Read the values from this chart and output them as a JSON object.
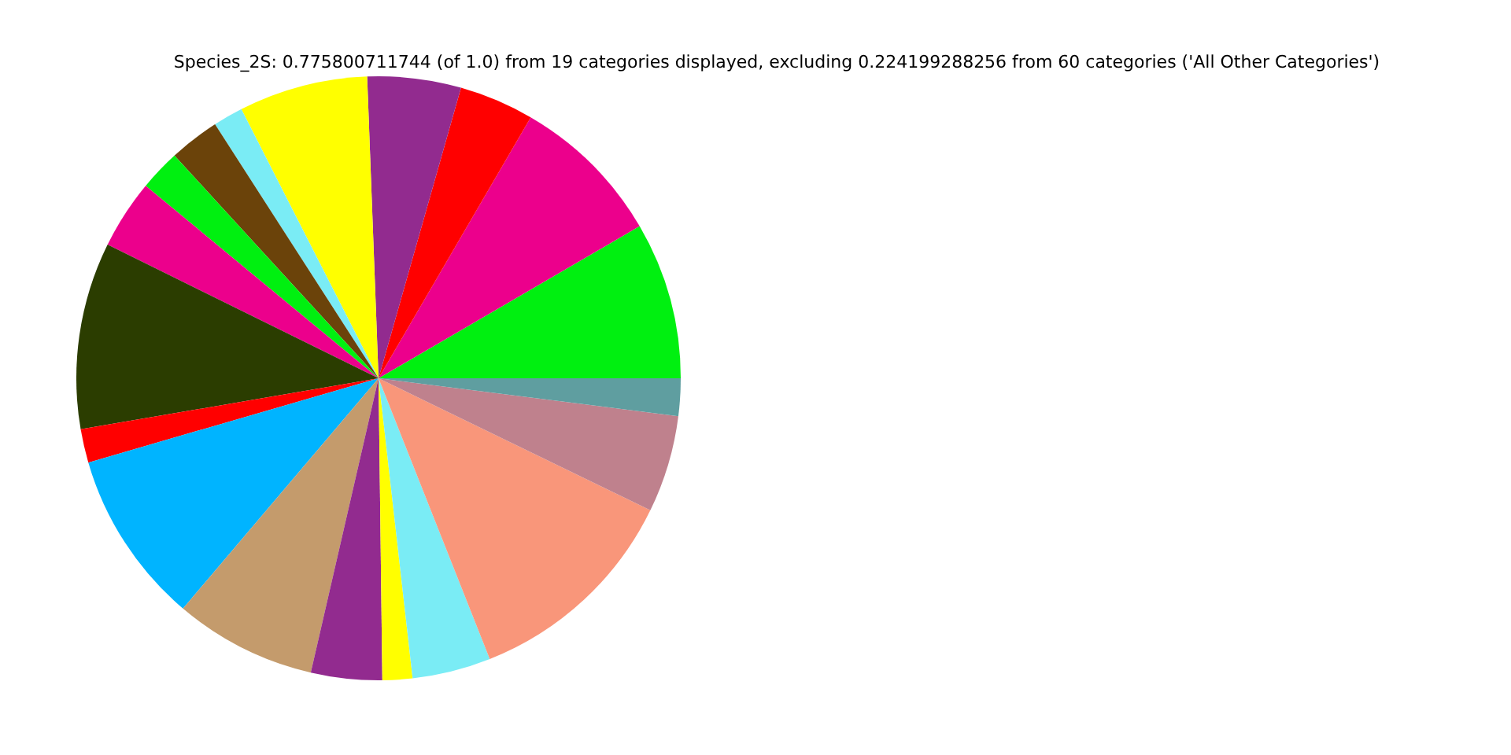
{
  "chart_data": {
    "type": "pie",
    "title": "Species_2S: 0.775800711744 (of 1.0) from 19 categories displayed, excluding 0.224199288256 from 60 categories ('All Other Categories')",
    "categories": [
      null,
      null,
      null,
      null,
      null,
      null,
      null,
      null,
      null,
      null,
      null,
      null,
      null,
      null,
      null,
      null,
      null,
      null,
      null
    ],
    "values": [
      8.4,
      8.2,
      4.0,
      5.0,
      6.9,
      1.6,
      2.7,
      2.2,
      3.7,
      10.0,
      1.8,
      9.3,
      7.6,
      3.8,
      1.6,
      4.2,
      11.8,
      5.2,
      2.0
    ],
    "colors": [
      "#00f010",
      "#ec008c",
      "#ff0000",
      "#922b8f",
      "#ffff00",
      "#7aecf5",
      "#6b430a",
      "#00f010",
      "#ec008c",
      "#2b3d00",
      "#ff0000",
      "#00b4ff",
      "#c49b6c",
      "#922b8f",
      "#ffff00",
      "#7aecf5",
      "#f9967a",
      "#bf818d",
      "#5f9ea0"
    ]
  }
}
